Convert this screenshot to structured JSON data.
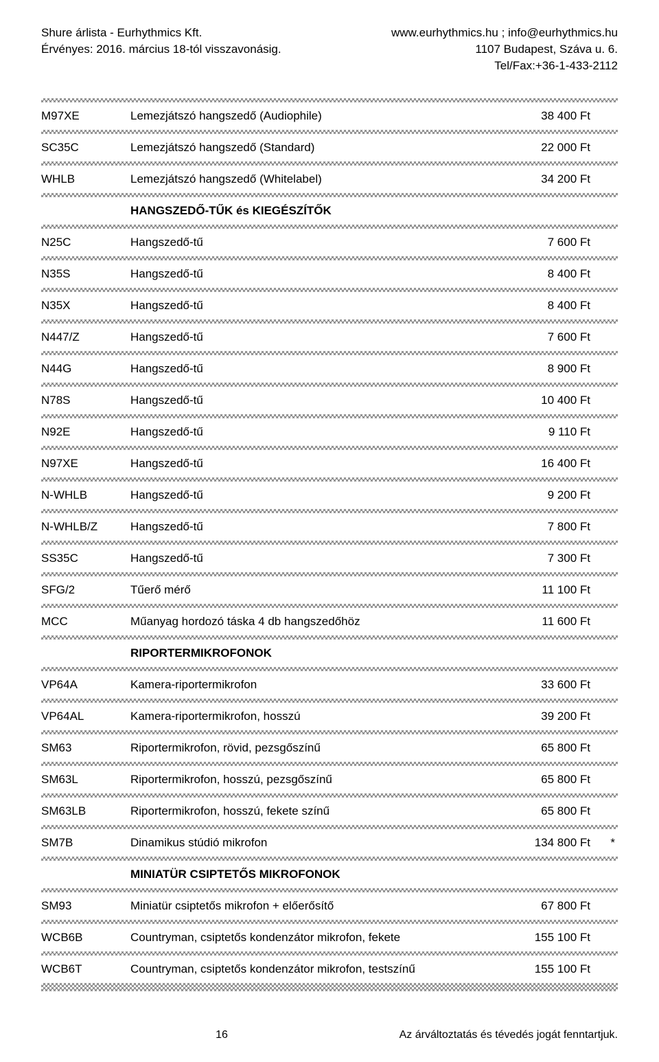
{
  "header": {
    "left_line1": "Shure árlista - Eurhythmics Kft.",
    "left_line2": "Érvényes: 2016. március 18-tól visszavonásig.",
    "right_line1": "www.eurhythmics.hu ; info@eurhythmics.hu",
    "right_line2": "1107 Budapest, Száva u. 6.",
    "right_line3": "Tel/Fax:+36-1-433-2112"
  },
  "rows": [
    {
      "type": "item",
      "code": "M97XE",
      "desc": "Lemezjátszó hangszedő (Audiophile)",
      "price": "38 400 Ft",
      "star": ""
    },
    {
      "type": "item",
      "code": "SC35C",
      "desc": "Lemezjátszó hangszedő (Standard)",
      "price": "22 000 Ft",
      "star": ""
    },
    {
      "type": "item",
      "code": "WHLB",
      "desc": "Lemezjátszó hangszedő (Whitelabel)",
      "price": "34 200 Ft",
      "star": ""
    },
    {
      "type": "section",
      "desc": "HANGSZEDŐ-TŰK és KIEGÉSZÍTŐK"
    },
    {
      "type": "item",
      "code": "N25C",
      "desc": "Hangszedő-tű",
      "price": "7 600 Ft",
      "star": ""
    },
    {
      "type": "item",
      "code": "N35S",
      "desc": "Hangszedő-tű",
      "price": "8 400 Ft",
      "star": ""
    },
    {
      "type": "item",
      "code": "N35X",
      "desc": "Hangszedő-tű",
      "price": "8 400 Ft",
      "star": ""
    },
    {
      "type": "item",
      "code": "N447/Z",
      "desc": "Hangszedő-tű",
      "price": "7 600 Ft",
      "star": ""
    },
    {
      "type": "item",
      "code": "N44G",
      "desc": "Hangszedő-tű",
      "price": "8 900 Ft",
      "star": ""
    },
    {
      "type": "item",
      "code": "N78S",
      "desc": "Hangszedő-tű",
      "price": "10 400 Ft",
      "star": ""
    },
    {
      "type": "item",
      "code": "N92E",
      "desc": "Hangszedő-tű",
      "price": "9 110 Ft",
      "star": ""
    },
    {
      "type": "item",
      "code": "N97XE",
      "desc": "Hangszedő-tű",
      "price": "16 400 Ft",
      "star": ""
    },
    {
      "type": "item",
      "code": "N-WHLB",
      "desc": "Hangszedő-tű",
      "price": "9 200 Ft",
      "star": ""
    },
    {
      "type": "item",
      "code": "N-WHLB/Z",
      "desc": "Hangszedő-tű",
      "price": "7 800 Ft",
      "star": ""
    },
    {
      "type": "item",
      "code": "SS35C",
      "desc": "Hangszedő-tű",
      "price": "7 300 Ft",
      "star": ""
    },
    {
      "type": "item",
      "code": "SFG/2",
      "desc": "Tűerő mérő",
      "price": "11 100 Ft",
      "star": ""
    },
    {
      "type": "item",
      "code": "MCC",
      "desc": "Műanyag hordozó táska 4 db hangszedőhöz",
      "price": "11 600 Ft",
      "star": ""
    },
    {
      "type": "section",
      "desc": "RIPORTERMIKROFONOK"
    },
    {
      "type": "item",
      "code": "VP64A",
      "desc": "Kamera-riportermikrofon",
      "price": "33 600 Ft",
      "star": ""
    },
    {
      "type": "item",
      "code": "VP64AL",
      "desc": "Kamera-riportermikrofon, hosszú",
      "price": "39 200 Ft",
      "star": ""
    },
    {
      "type": "item",
      "code": "SM63",
      "desc": "Riportermikrofon, rövid, pezsgőszínű",
      "price": "65 800 Ft",
      "star": ""
    },
    {
      "type": "item",
      "code": "SM63L",
      "desc": "Riportermikrofon, hosszú, pezsgőszínű",
      "price": "65 800 Ft",
      "star": ""
    },
    {
      "type": "item",
      "code": "SM63LB",
      "desc": "Riportermikrofon, hosszú, fekete színű",
      "price": "65 800 Ft",
      "star": ""
    },
    {
      "type": "item",
      "code": "SM7B",
      "desc": "Dinamikus stúdió mikrofon",
      "price": "134 800 Ft",
      "star": "*"
    },
    {
      "type": "section",
      "desc": "MINIATÜR CSIPTETŐS MIKROFONOK"
    },
    {
      "type": "item",
      "code": "SM93",
      "desc": "Miniatür csiptetős mikrofon + előerősítő",
      "price": "67 800 Ft",
      "star": ""
    },
    {
      "type": "item",
      "code": "WCB6B",
      "desc": "Countryman, csiptetős kondenzátor mikrofon, fekete",
      "price": "155 100 Ft",
      "star": ""
    },
    {
      "type": "item",
      "code": "WCB6T",
      "desc": "Countryman, csiptetős kondenzátor mikrofon, testszínű",
      "price": "155 100 Ft",
      "star": ""
    }
  ],
  "footer": {
    "page_number": "16",
    "disclaimer": "Az árváltoztatás és tévedés jogát fenntartjuk."
  }
}
